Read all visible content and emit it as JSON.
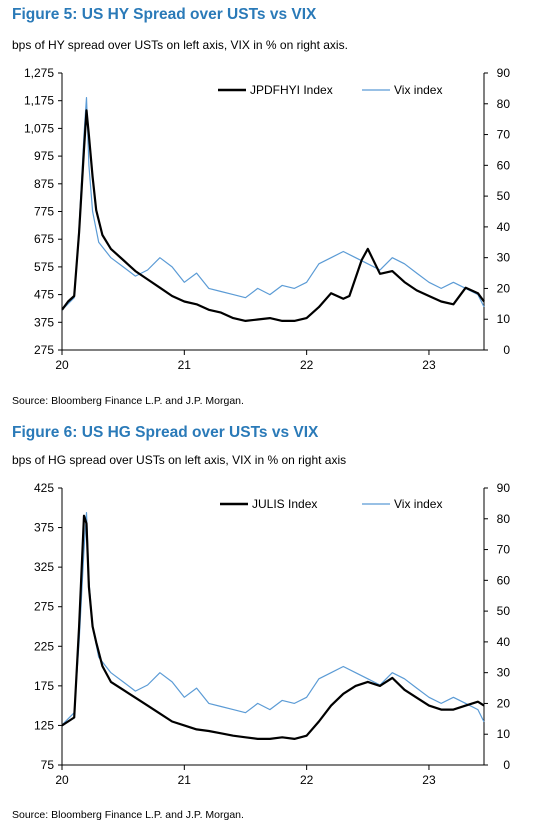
{
  "colors": {
    "title": "#2a7ab8",
    "spread_line": "#000000",
    "vix_line": "#5b9bd5"
  },
  "figures": [
    {
      "title": "Figure 5: US HY Spread over USTs vs VIX",
      "subtitle": "bps of HY spread over USTs on left axis, VIX in % on right axis.",
      "source": "Source: Bloomberg Finance L.P. and J.P. Morgan."
    },
    {
      "title": "Figure 6: US HG Spread over USTs vs VIX",
      "subtitle": "bps of HG spread over USTs on left axis, VIX in % on right axis",
      "source": "Source: Bloomberg Finance L.P. and J.P. Morgan."
    }
  ],
  "chart_data": [
    {
      "type": "line",
      "title": "Figure 5: US HY Spread over USTs vs VIX",
      "x_ticks": [
        "20",
        "21",
        "22",
        "23"
      ],
      "x_range": [
        2020.0,
        2023.45
      ],
      "y_left": {
        "range": [
          275,
          1275
        ],
        "ticks": [
          "1,275",
          "1,175",
          "1,075",
          "975",
          "875",
          "775",
          "675",
          "575",
          "475",
          "375",
          "275"
        ]
      },
      "y_right": {
        "range": [
          0,
          90
        ],
        "ticks": [
          "90",
          "80",
          "70",
          "60",
          "50",
          "40",
          "30",
          "20",
          "10",
          "0"
        ]
      },
      "legend_position": "top-right",
      "grid": false,
      "series": [
        {
          "name": "JPDFHYI Index",
          "axis": "left",
          "x": [
            2020.0,
            2020.05,
            2020.1,
            2020.14,
            2020.18,
            2020.2,
            2020.22,
            2020.25,
            2020.28,
            2020.33,
            2020.4,
            2020.5,
            2020.6,
            2020.7,
            2020.8,
            2020.9,
            2021.0,
            2021.1,
            2021.2,
            2021.3,
            2021.4,
            2021.5,
            2021.6,
            2021.7,
            2021.8,
            2021.9,
            2022.0,
            2022.1,
            2022.2,
            2022.3,
            2022.35,
            2022.45,
            2022.5,
            2022.6,
            2022.7,
            2022.8,
            2022.9,
            2023.0,
            2023.1,
            2023.2,
            2023.3,
            2023.4,
            2023.45
          ],
          "y": [
            420,
            450,
            470,
            700,
            1000,
            1140,
            1050,
            900,
            780,
            690,
            640,
            600,
            560,
            530,
            500,
            470,
            450,
            440,
            420,
            410,
            390,
            380,
            385,
            390,
            380,
            380,
            390,
            430,
            480,
            460,
            470,
            600,
            640,
            550,
            560,
            520,
            490,
            470,
            450,
            440,
            500,
            480,
            450
          ]
        },
        {
          "name": "Vix index",
          "axis": "right",
          "x": [
            2020.0,
            2020.05,
            2020.1,
            2020.14,
            2020.18,
            2020.2,
            2020.22,
            2020.25,
            2020.3,
            2020.4,
            2020.5,
            2020.6,
            2020.7,
            2020.8,
            2020.9,
            2021.0,
            2021.1,
            2021.2,
            2021.3,
            2021.4,
            2021.5,
            2021.6,
            2021.7,
            2021.8,
            2021.9,
            2022.0,
            2022.1,
            2022.2,
            2022.3,
            2022.4,
            2022.5,
            2022.6,
            2022.7,
            2022.8,
            2022.9,
            2023.0,
            2023.1,
            2023.2,
            2023.3,
            2023.4,
            2023.45
          ],
          "y": [
            13,
            15,
            17,
            40,
            70,
            82,
            60,
            45,
            35,
            30,
            27,
            24,
            26,
            30,
            27,
            22,
            25,
            20,
            19,
            18,
            17,
            20,
            18,
            21,
            20,
            22,
            28,
            30,
            32,
            30,
            28,
            26,
            30,
            28,
            25,
            22,
            20,
            22,
            20,
            18,
            14
          ]
        }
      ]
    },
    {
      "type": "line",
      "title": "Figure 6: US HG Spread over USTs vs VIX",
      "x_ticks": [
        "20",
        "21",
        "22",
        "23"
      ],
      "x_range": [
        2020.0,
        2023.45
      ],
      "y_left": {
        "range": [
          75,
          425
        ],
        "ticks": [
          "425",
          "375",
          "325",
          "275",
          "225",
          "175",
          "125",
          "75"
        ]
      },
      "y_right": {
        "range": [
          0,
          90
        ],
        "ticks": [
          "90",
          "80",
          "70",
          "60",
          "50",
          "40",
          "30",
          "20",
          "10",
          "0"
        ]
      },
      "legend_position": "top-right",
      "grid": false,
      "series": [
        {
          "name": "JULIS Index",
          "axis": "left",
          "x": [
            2020.0,
            2020.05,
            2020.1,
            2020.14,
            2020.18,
            2020.2,
            2020.22,
            2020.25,
            2020.28,
            2020.33,
            2020.4,
            2020.5,
            2020.6,
            2020.7,
            2020.8,
            2020.9,
            2021.0,
            2021.1,
            2021.2,
            2021.3,
            2021.4,
            2021.5,
            2021.6,
            2021.7,
            2021.8,
            2021.9,
            2022.0,
            2022.1,
            2022.2,
            2022.3,
            2022.4,
            2022.5,
            2022.6,
            2022.7,
            2022.8,
            2022.9,
            2023.0,
            2023.1,
            2023.2,
            2023.3,
            2023.4,
            2023.45
          ],
          "y": [
            125,
            130,
            135,
            250,
            390,
            380,
            300,
            250,
            230,
            200,
            180,
            170,
            160,
            150,
            140,
            130,
            125,
            120,
            118,
            115,
            112,
            110,
            108,
            108,
            110,
            108,
            112,
            130,
            150,
            165,
            175,
            180,
            175,
            185,
            170,
            160,
            150,
            145,
            145,
            150,
            155,
            150
          ]
        },
        {
          "name": "Vix index",
          "axis": "right",
          "x": [
            2020.0,
            2020.05,
            2020.1,
            2020.14,
            2020.18,
            2020.2,
            2020.22,
            2020.25,
            2020.3,
            2020.4,
            2020.5,
            2020.6,
            2020.7,
            2020.8,
            2020.9,
            2021.0,
            2021.1,
            2021.2,
            2021.3,
            2021.4,
            2021.5,
            2021.6,
            2021.7,
            2021.8,
            2021.9,
            2022.0,
            2022.1,
            2022.2,
            2022.3,
            2022.4,
            2022.5,
            2022.6,
            2022.7,
            2022.8,
            2022.9,
            2023.0,
            2023.1,
            2023.2,
            2023.3,
            2023.4,
            2023.45
          ],
          "y": [
            13,
            15,
            17,
            40,
            70,
            82,
            60,
            45,
            35,
            30,
            27,
            24,
            26,
            30,
            27,
            22,
            25,
            20,
            19,
            18,
            17,
            20,
            18,
            21,
            20,
            22,
            28,
            30,
            32,
            30,
            28,
            26,
            30,
            28,
            25,
            22,
            20,
            22,
            20,
            18,
            14
          ]
        }
      ]
    }
  ]
}
